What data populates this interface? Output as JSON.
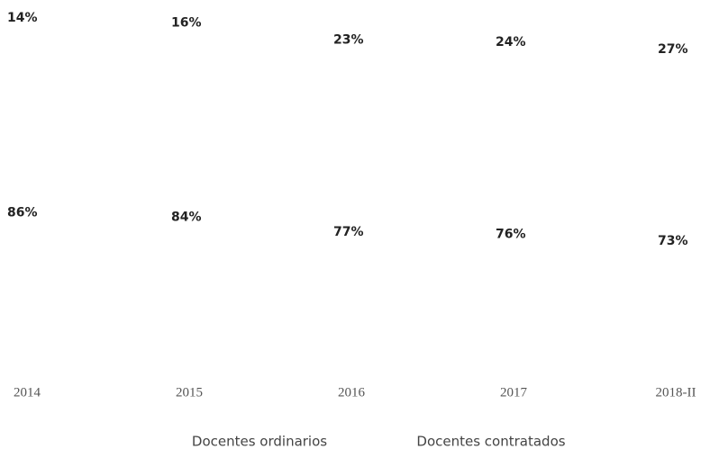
{
  "chart_data": {
    "type": "bar",
    "stacked": true,
    "categories": [
      "2014",
      "2015",
      "2016",
      "2017",
      "2018-II"
    ],
    "series": [
      {
        "name": "Docentes ordinarios",
        "color": "#ffffff",
        "values": [
          86,
          84,
          77,
          76,
          73
        ],
        "value_labels": [
          "86%",
          "84%",
          "77%",
          "76%",
          "73%"
        ]
      },
      {
        "name": "Docentes contratados",
        "color": "#ffffff",
        "values": [
          14,
          16,
          23,
          24,
          27
        ],
        "value_labels": [
          "14%",
          "16%",
          "23%",
          "24%",
          "27%"
        ]
      }
    ]
  }
}
